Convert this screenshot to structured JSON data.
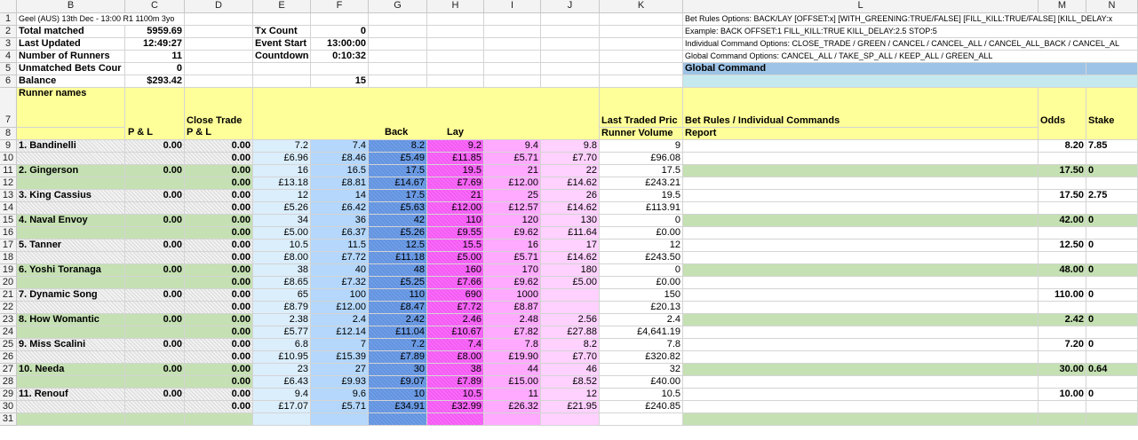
{
  "columns": [
    "B",
    "C",
    "D",
    "E",
    "F",
    "G",
    "H",
    "I",
    "J",
    "K",
    "L",
    "M",
    "N"
  ],
  "rows": [
    "1",
    "2",
    "3",
    "4",
    "5",
    "6",
    "7",
    "8",
    "9",
    "10",
    "11",
    "12",
    "13",
    "14",
    "15",
    "16",
    "17",
    "18",
    "19",
    "20",
    "21",
    "22",
    "23",
    "24",
    "25",
    "26",
    "27",
    "28",
    "29",
    "30",
    "31"
  ],
  "info": {
    "event_title": "Geel (AUS) 13th Dec - 13:00 R1 1100m 3yo",
    "total_matched_label": "Total matched",
    "total_matched": "5959.69",
    "last_updated_label": "Last Updated",
    "last_updated": "12:49:27",
    "num_runners_label": "Number of Runners",
    "num_runners": "11",
    "unmatched_label": "Unmatched Bets Cour",
    "unmatched": "0",
    "balance_label": "Balance",
    "balance": "$293.42",
    "tx_count_label": "Tx Count",
    "tx_count": "0",
    "event_start_label": "Event Start",
    "event_start": "13:00:00",
    "countdown_label": "Countdown",
    "countdown": "0:10:32",
    "e6_value": "15"
  },
  "notes": {
    "bet_rules": "Bet Rules Options:     BACK/LAY [OFFSET:x] [WITH_GREENING:TRUE/FALSE] [FILL_KILL:TRUE/FALSE] [KILL_DELAY:x",
    "example": "Example:  BACK OFFSET:1 FILL_KILL:TRUE KILL_DELAY:2.5 STOP:5",
    "individual": "Individual Command Options:  CLOSE_TRADE / GREEN / CANCEL / CANCEL_ALL / CANCEL_ALL_BACK / CANCEL_AL",
    "global": "Global Command Options:      CANCEL_ALL / TAKE_SP_ALL / KEEP_ALL / GREEN_ALL",
    "global_command": "Global Command"
  },
  "headers": {
    "runner_names": "Runner names",
    "pl": "P & L",
    "close_trade_1": "Close Trade",
    "close_trade_2": "P & L",
    "close_trade_3": "L",
    "back": "Back",
    "lay": "Lay",
    "ltp": "Last Traded Pric",
    "runner_volume": "Runner Volume",
    "bet_rules": "Bet Rules / Individual Commands",
    "report": "Report",
    "odds": "Odds",
    "stake": "Stake"
  },
  "runners": [
    {
      "name": "1. Bandinelli",
      "pl": "0.00",
      "ct1": "0.00",
      "ct2": "0.00",
      "back_odds": [
        "7.2",
        "7.4",
        "8.2"
      ],
      "back_amt": [
        "£6.96",
        "£8.46",
        "£5.49"
      ],
      "lay_odds": [
        "9.2",
        "9.4",
        "9.8"
      ],
      "lay_amt": [
        "£11.85",
        "£5.71",
        "£7.70"
      ],
      "ltp": "9",
      "volume": "£96.08",
      "odds": "8.20",
      "stake": "7.85"
    },
    {
      "name": "2. Gingerson",
      "pl": "0.00",
      "ct1": "0.00",
      "ct2": "0.00",
      "back_odds": [
        "16",
        "16.5",
        "17.5"
      ],
      "back_amt": [
        "£13.18",
        "£8.81",
        "£14.67"
      ],
      "lay_odds": [
        "19.5",
        "21",
        "22"
      ],
      "lay_amt": [
        "£7.69",
        "£12.00",
        "£14.62"
      ],
      "ltp": "17.5",
      "volume": "£243.21",
      "odds": "17.50",
      "stake": "0"
    },
    {
      "name": "3. King Cassius",
      "pl": "0.00",
      "ct1": "0.00",
      "ct2": "0.00",
      "back_odds": [
        "12",
        "14",
        "17.5"
      ],
      "back_amt": [
        "£5.26",
        "£6.42",
        "£5.63"
      ],
      "lay_odds": [
        "21",
        "25",
        "26"
      ],
      "lay_amt": [
        "£12.00",
        "£12.57",
        "£14.62"
      ],
      "ltp": "19.5",
      "volume": "£113.91",
      "odds": "17.50",
      "stake": "2.75"
    },
    {
      "name": "4. Naval Envoy",
      "pl": "0.00",
      "ct1": "0.00",
      "ct2": "0.00",
      "back_odds": [
        "34",
        "36",
        "42"
      ],
      "back_amt": [
        "£5.00",
        "£6.37",
        "£5.26"
      ],
      "lay_odds": [
        "110",
        "120",
        "130"
      ],
      "lay_amt": [
        "£9.55",
        "£9.62",
        "£11.64"
      ],
      "ltp": "0",
      "volume": "£0.00",
      "odds": "42.00",
      "stake": "0"
    },
    {
      "name": "5. Tanner",
      "pl": "0.00",
      "ct1": "0.00",
      "ct2": "0.00",
      "back_odds": [
        "10.5",
        "11.5",
        "12.5"
      ],
      "back_amt": [
        "£8.00",
        "£7.72",
        "£11.18"
      ],
      "lay_odds": [
        "15.5",
        "16",
        "17"
      ],
      "lay_amt": [
        "£5.00",
        "£5.71",
        "£14.62"
      ],
      "ltp": "12",
      "volume": "£243.50",
      "odds": "12.50",
      "stake": "0"
    },
    {
      "name": "6. Yoshi Toranaga",
      "pl": "0.00",
      "ct1": "0.00",
      "ct2": "0.00",
      "back_odds": [
        "38",
        "40",
        "48"
      ],
      "back_amt": [
        "£8.65",
        "£7.32",
        "£5.25"
      ],
      "lay_odds": [
        "160",
        "170",
        "180"
      ],
      "lay_amt": [
        "£7.66",
        "£9.62",
        "£5.00"
      ],
      "ltp": "0",
      "volume": "£0.00",
      "odds": "48.00",
      "stake": "0"
    },
    {
      "name": "7. Dynamic Song",
      "pl": "0.00",
      "ct1": "0.00",
      "ct2": "0.00",
      "back_odds": [
        "65",
        "100",
        "110"
      ],
      "back_amt": [
        "£8.79",
        "£12.00",
        "£8.47"
      ],
      "lay_odds": [
        "690",
        "1000",
        ""
      ],
      "lay_amt": [
        "£7.72",
        "£8.87",
        ""
      ],
      "ltp": "150",
      "volume": "£20.13",
      "odds": "110.00",
      "stake": "0"
    },
    {
      "name": "8. How Womantic",
      "pl": "0.00",
      "ct1": "0.00",
      "ct2": "0.00",
      "back_odds": [
        "2.38",
        "2.4",
        "2.42"
      ],
      "back_amt": [
        "£5.77",
        "£12.14",
        "£11.04"
      ],
      "lay_odds": [
        "2.46",
        "2.48",
        "2.56"
      ],
      "lay_amt": [
        "£10.67",
        "£7.82",
        "£27.88"
      ],
      "ltp": "2.4",
      "volume": "£4,641.19",
      "odds": "2.42",
      "stake": "0"
    },
    {
      "name": "9. Miss Scalini",
      "pl": "0.00",
      "ct1": "0.00",
      "ct2": "0.00",
      "back_odds": [
        "6.8",
        "7",
        "7.2"
      ],
      "back_amt": [
        "£10.95",
        "£15.39",
        "£7.89"
      ],
      "lay_odds": [
        "7.4",
        "7.8",
        "8.2"
      ],
      "lay_amt": [
        "£8.00",
        "£19.90",
        "£7.70"
      ],
      "ltp": "7.8",
      "volume": "£320.82",
      "odds": "7.20",
      "stake": "0"
    },
    {
      "name": "10. Needa",
      "pl": "0.00",
      "ct1": "0.00",
      "ct2": "0.00",
      "back_odds": [
        "23",
        "27",
        "30"
      ],
      "back_amt": [
        "£6.43",
        "£9.93",
        "£9.07"
      ],
      "lay_odds": [
        "38",
        "44",
        "46"
      ],
      "lay_amt": [
        "£7.89",
        "£15.00",
        "£8.52"
      ],
      "ltp": "32",
      "volume": "£40.00",
      "odds": "30.00",
      "stake": "0.64"
    },
    {
      "name": "11. Renouf",
      "pl": "0.00",
      "ct1": "0.00",
      "ct2": "0.00",
      "back_odds": [
        "9.4",
        "9.6",
        "10"
      ],
      "back_amt": [
        "£17.07",
        "£5.71",
        "£34.91"
      ],
      "lay_odds": [
        "10.5",
        "11",
        "12"
      ],
      "lay_amt": [
        "£32.99",
        "£26.32",
        "£21.95"
      ],
      "ltp": "10.5",
      "volume": "£240.85",
      "odds": "10.00",
      "stake": "0"
    }
  ]
}
